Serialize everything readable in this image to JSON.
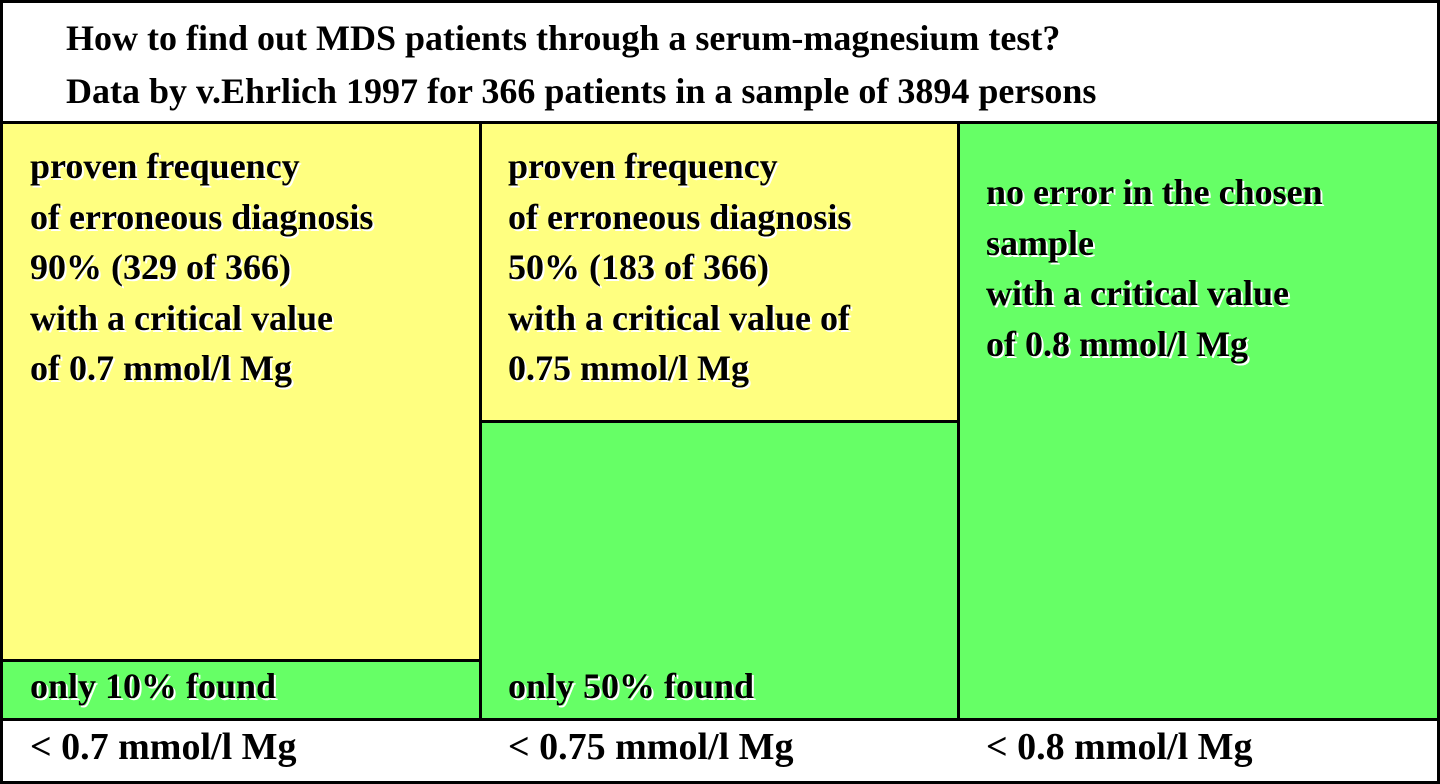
{
  "title": {
    "line1": "How to find out MDS patients through a serum-magnesium test?",
    "line2": "Data by v.Ehrlich 1997 for 366 patients in a sample of 3894 persons"
  },
  "colors": {
    "yellow": "#ffff80",
    "green": "#66ff66",
    "border": "#000000"
  },
  "columns": [
    {
      "error_lines": [
        "proven frequency",
        "of erroneous diagnosis",
        "90% (329 of 366)",
        "with a critical value",
        "of 0.7 mmol/l Mg"
      ],
      "error_percent": 90,
      "found_label": "only 10% found",
      "found_percent": 10,
      "threshold": "< 0.7 mmol/l Mg"
    },
    {
      "error_lines": [
        "proven frequency",
        "of erroneous diagnosis",
        "50% (183 of 366)",
        "with a critical value of",
        "0.75 mmol/l Mg"
      ],
      "error_percent": 50,
      "found_label": "only 50% found",
      "found_percent": 50,
      "threshold": "< 0.75 mmol/l Mg"
    },
    {
      "error_lines": [
        "no error in the chosen",
        "sample",
        "with a critical value",
        "of 0.8 mmol/l Mg"
      ],
      "error_percent": 0,
      "found_label": "",
      "found_percent": 100,
      "threshold": "< 0.8 mmol/l Mg"
    }
  ]
}
